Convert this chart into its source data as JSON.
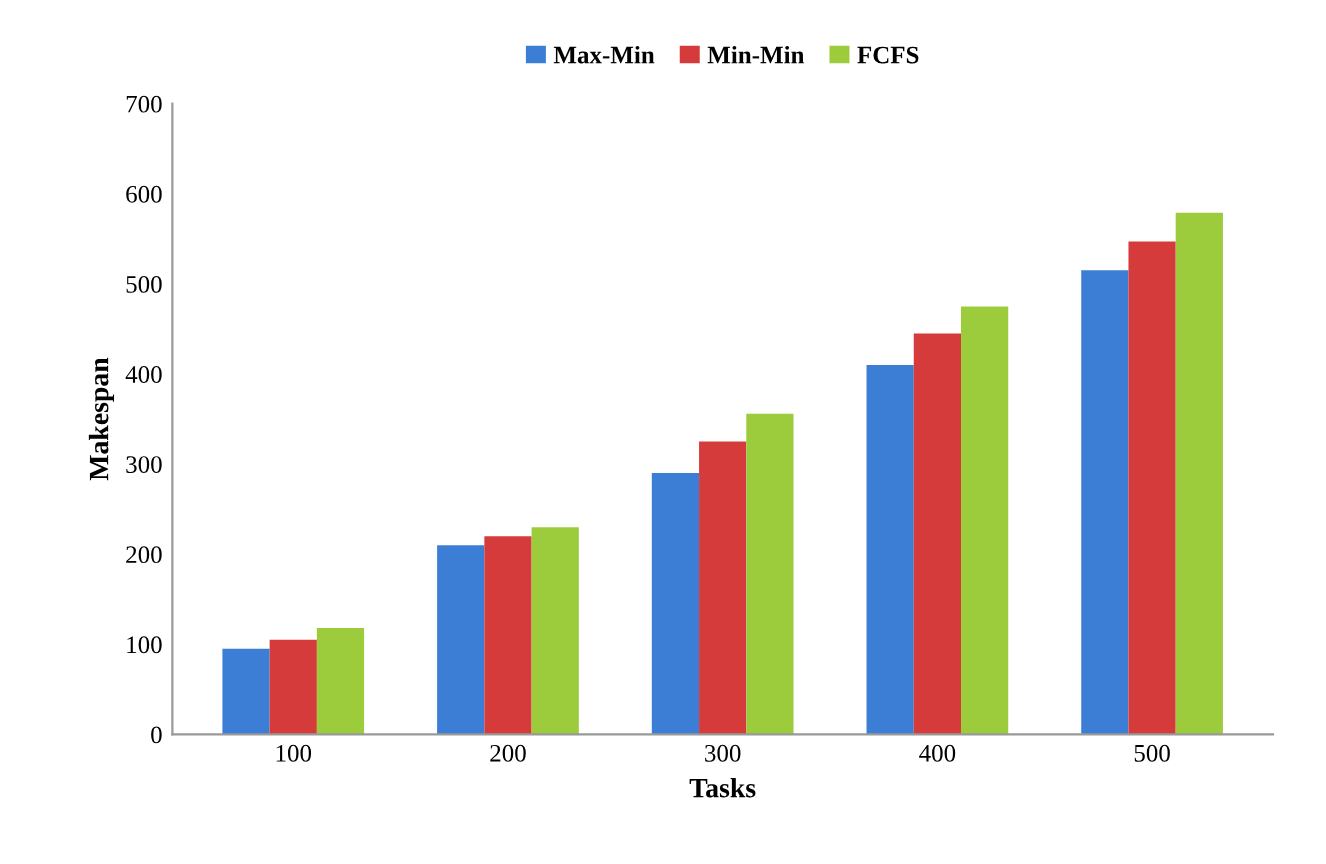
{
  "chart_data": {
    "type": "bar",
    "xlabel": "Tasks",
    "ylabel": "Makespan",
    "categories": [
      "100",
      "200",
      "300",
      "400",
      "500"
    ],
    "series": [
      {
        "name": "Max-Min",
        "color": "#3c7dd6",
        "values": [
          95,
          210,
          290,
          410,
          515
        ]
      },
      {
        "name": "Min-Min",
        "color": "#d63b3b",
        "values": [
          105,
          220,
          325,
          445,
          547
        ]
      },
      {
        "name": "FCFS",
        "color": "#9ccc3c",
        "values": [
          118,
          230,
          356,
          475,
          579
        ]
      }
    ],
    "ylim": [
      0,
      700
    ],
    "yticks": [
      0,
      100,
      200,
      300,
      400,
      500,
      600,
      700
    ],
    "grid": false,
    "legend": "top"
  }
}
